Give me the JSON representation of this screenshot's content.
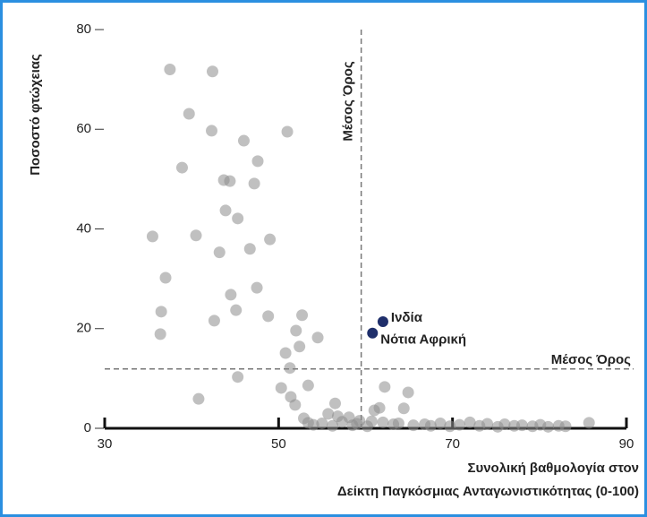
{
  "chart_data": {
    "type": "scatter",
    "ylabel": "Ποσοστό φτώχειας",
    "xlabel": [
      "Συνολική βαθμολογία στον",
      "Δείκτη Παγκόσμιας Ανταγωνιστικότητας (0-100)"
    ],
    "xlim": [
      30,
      90
    ],
    "xticks": [
      30,
      50,
      70,
      90
    ],
    "ylim": [
      0,
      80
    ],
    "yticks": [
      0,
      20,
      40,
      60,
      80
    ],
    "series": [
      {
        "color": "#8c8c8c",
        "x": [
          37.5,
          42.4,
          39.7,
          42.3,
          46.0,
          51.0,
          38.9,
          47.6,
          43.7,
          44.4,
          47.2,
          43.9,
          45.3,
          35.5,
          40.5,
          49.0,
          46.7,
          43.2,
          37.0,
          47.5,
          44.5,
          36.5,
          45.1,
          48.8,
          42.6,
          36.4,
          52.7,
          52.0,
          52.4,
          54.5,
          50.8,
          51.3,
          53.4,
          45.3,
          40.8,
          50.3,
          51.4,
          51.9,
          56.5,
          55.7,
          52.9,
          53.4,
          58.1,
          61.0,
          61.6,
          62.2,
          64.9,
          64.4,
          60.7,
          62.0,
          63.2,
          85.7,
          54.0,
          55.0,
          56.2,
          57.3,
          58.5,
          59.3,
          60.2,
          63.8,
          65.5,
          66.8,
          67.5,
          68.6,
          69.7,
          70.8,
          72.0,
          73.1,
          74.0,
          75.2,
          76.0,
          77.1,
          78.0,
          79.2,
          80.1,
          81.0,
          82.2,
          83.0,
          56.8,
          59.0
        ],
        "values": [
          72,
          71.6,
          63.1,
          59.7,
          57.7,
          59.5,
          52.3,
          53.6,
          49.8,
          49.6,
          49.1,
          43.7,
          42.1,
          38.5,
          38.7,
          37.9,
          36.0,
          35.3,
          30.2,
          28.2,
          26.8,
          23.4,
          23.7,
          22.5,
          21.6,
          18.9,
          22.7,
          19.6,
          16.4,
          18.2,
          15.1,
          12.1,
          8.6,
          10.3,
          5.9,
          8.1,
          6.3,
          4.7,
          5.0,
          2.9,
          2.0,
          1.1,
          2.2,
          3.6,
          4.1,
          8.3,
          7.2,
          4.0,
          1.4,
          1.2,
          0.8,
          1.1,
          0.7,
          1.0,
          0.5,
          1.3,
          0.6,
          1.5,
          0.4,
          1.0,
          0.6,
          0.8,
          0.5,
          1.0,
          0.4,
          0.7,
          1.2,
          0.5,
          0.9,
          0.3,
          0.8,
          0.5,
          0.6,
          0.4,
          0.7,
          0.3,
          0.5,
          0.4,
          2.4,
          0.9
        ]
      },
      {
        "color": "#1f2f6b",
        "x": [
          62.0,
          60.8
        ],
        "values": [
          21.4,
          19.1
        ],
        "labels": [
          "Ινδία",
          "Νότια Αφρική"
        ]
      }
    ],
    "reference_lines": [
      {
        "axis": "x",
        "value": 59.5,
        "label": "Μέσος Όρος"
      },
      {
        "axis": "y",
        "value": 11.9,
        "label": "Μέσος Όρος"
      }
    ]
  }
}
